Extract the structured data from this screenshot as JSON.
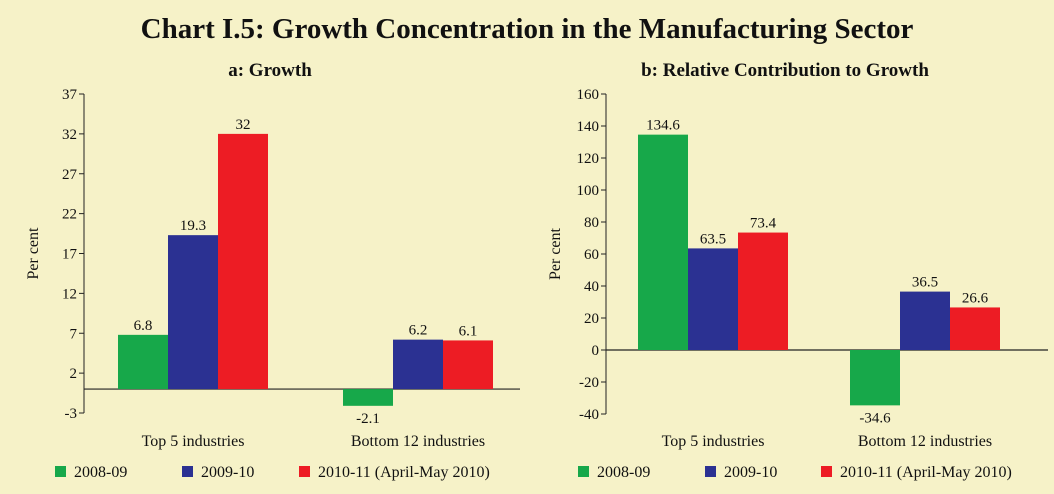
{
  "title": "Chart I.5: Growth Concentration in the Manufacturing Sector",
  "colors": {
    "2008-09": "#17a84a",
    "2009-10": "#2b3192",
    "2010-11": "#ed1c24"
  },
  "chart_data": [
    {
      "type": "bar",
      "title": "a: Growth",
      "ylabel": "Per cent",
      "xlabel": "",
      "categories": [
        "Top 5 industries",
        "Bottom 12 industries"
      ],
      "ylim": [
        -3,
        37
      ],
      "yticks": [
        -3,
        2,
        7,
        12,
        17,
        22,
        27,
        32,
        37
      ],
      "grid": false,
      "legend_position": "bottom",
      "series": [
        {
          "name": "2008-09",
          "values": [
            6.8,
            -2.1
          ],
          "labels": [
            "6.8",
            "-2.1"
          ],
          "color": "#17a84a"
        },
        {
          "name": "2009-10",
          "values": [
            19.3,
            6.2
          ],
          "labels": [
            "19.3",
            "6.2"
          ],
          "color": "#2b3192"
        },
        {
          "name": "2010-11 (April-May 2010)",
          "values": [
            32,
            6.1
          ],
          "labels": [
            "32",
            "6.1"
          ],
          "color": "#ed1c24"
        }
      ]
    },
    {
      "type": "bar",
      "title": "b: Relative Contribution to Growth",
      "ylabel": "Per cent",
      "xlabel": "",
      "categories": [
        "Top 5 industries",
        "Bottom 12 industries"
      ],
      "ylim": [
        -40,
        160
      ],
      "yticks": [
        -40,
        -20,
        0,
        20,
        40,
        60,
        80,
        100,
        120,
        140,
        160
      ],
      "grid": false,
      "legend_position": "bottom",
      "series": [
        {
          "name": "2008-09",
          "values": [
            134.6,
            -34.6
          ],
          "labels": [
            "134.6",
            "-34.6"
          ],
          "color": "#17a84a"
        },
        {
          "name": "2009-10",
          "values": [
            63.5,
            36.5
          ],
          "labels": [
            "63.5",
            "36.5"
          ],
          "color": "#2b3192"
        },
        {
          "name": "2010-11 (April-May 2010)",
          "values": [
            73.4,
            26.6
          ],
          "labels": [
            "73.4",
            "26.6"
          ],
          "color": "#ed1c24"
        }
      ]
    }
  ]
}
